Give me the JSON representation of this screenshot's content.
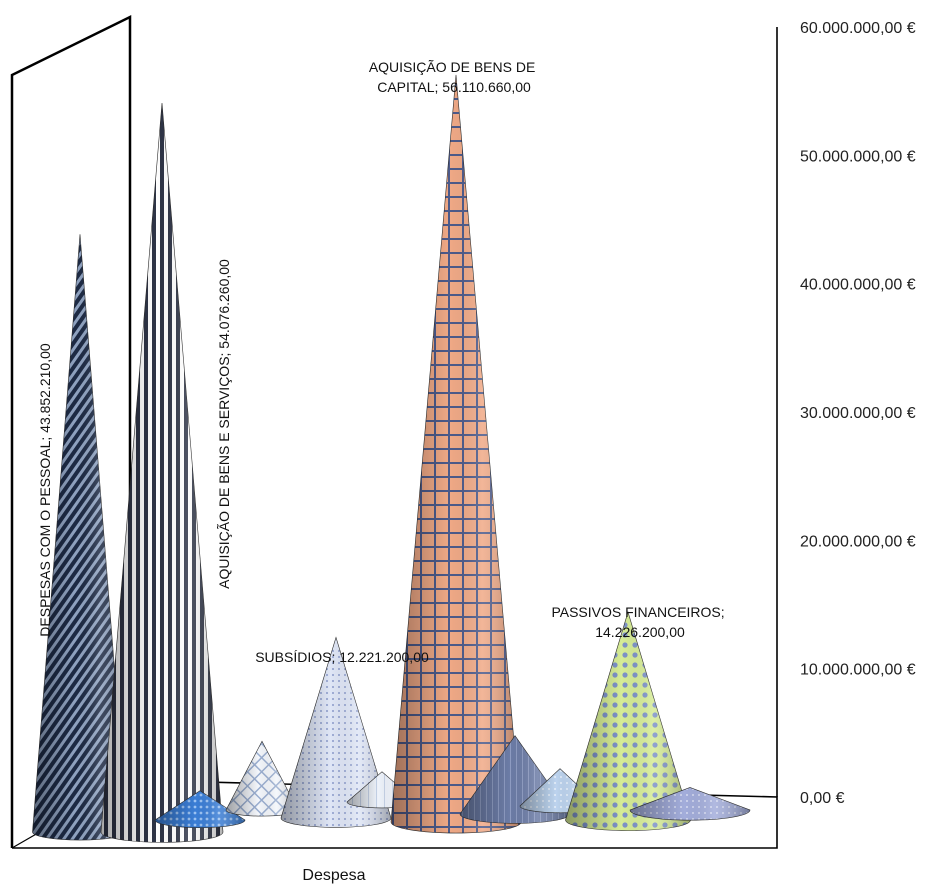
{
  "chart_data": {
    "type": "bar",
    "subtype": "3d-cone",
    "xlabel": "Despesa",
    "ylabel": "",
    "ylim": [
      0,
      60000000
    ],
    "y_ticks": [
      "0,00 €",
      "10.000.000,00 €",
      "20.000.000,00 €",
      "30.000.000,00 €",
      "40.000.000,00 €",
      "50.000.000,00 €",
      "60.000.000,00 €"
    ],
    "grid": false,
    "legend": "none",
    "categories": [
      "DESPESAS COM O PESSOAL",
      "AQUISIÇÃO DE BENS E SERVIÇOS",
      "",
      "",
      "SUBSÍDIOS",
      "",
      "AQUISIÇÃO DE BENS DE CAPITAL",
      "",
      "",
      "PASSIVOS FINANCEIROS",
      ""
    ],
    "values": [
      43852210,
      54076260,
      300000,
      4000000,
      12221200,
      1500000,
      56110660,
      4500000,
      1800000,
      14226200,
      400000
    ],
    "data_labels": [
      "DESPESAS COM O PESSOAL; 43.852.210,00",
      "AQUISIÇÃO DE BENS E SERVIÇOS; 54.076.260,00",
      "",
      "",
      "SUBSÍDIOS; 12.221.200,00",
      "",
      "AQUISIÇÃO DE BENS DE CAPITAL; 56.110.660,00",
      "",
      "",
      "PASSIVOS FINANCEIROS; 14.226.200,00",
      ""
    ],
    "colors": [
      "#2f3b55",
      "#4a5066",
      "#3c7fd8",
      "#d9e4ef",
      "#c9d6ee",
      "#e6eef8",
      "#e9a07a",
      "#6f7fa8",
      "#b9cfe8",
      "#c7dc8e",
      "#9aa6cc"
    ]
  }
}
